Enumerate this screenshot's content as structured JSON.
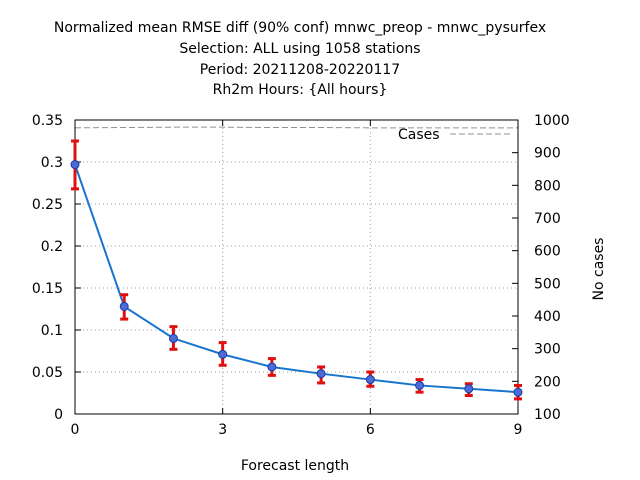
{
  "title_lines": [
    "Normalized mean RMSE diff (90% conf) mnwc_preop - mnwc_pysurfex",
    "Selection: ALL using  1058 stations",
    "Period: 20211208-20220117",
    "Rh2m   Hours: {All hours}"
  ],
  "chart_data": {
    "type": "line",
    "title": "Normalized mean RMSE diff (90% conf) mnwc_preop - mnwc_pysurfex",
    "xlabel": "Forecast length",
    "ylabel": "",
    "y2label": "No cases",
    "xlim": [
      0,
      9
    ],
    "ylim": [
      0,
      0.35
    ],
    "y2lim": [
      100,
      1000
    ],
    "x_ticks": [
      0,
      3,
      6,
      9
    ],
    "y_ticks": [
      0,
      0.05,
      0.1,
      0.15,
      0.2,
      0.25,
      0.3,
      0.35
    ],
    "y_tick_labels": [
      "0",
      "0.05",
      "0.1",
      "0.15",
      "0.2",
      "0.25",
      "0.3",
      "0.35"
    ],
    "y2_ticks": [
      100,
      200,
      300,
      400,
      500,
      600,
      700,
      800,
      900,
      1000
    ],
    "grid": true,
    "legend": "top-right",
    "series": [
      {
        "kind": "main",
        "color": "#1874CD",
        "marker_color": "#4a6cd4",
        "x": [
          0,
          1,
          2,
          3,
          4,
          5,
          6,
          7,
          8,
          9
        ],
        "y": [
          0.297,
          0.128,
          0.09,
          0.071,
          0.056,
          0.048,
          0.041,
          0.034,
          0.03,
          0.026
        ]
      },
      {
        "kind": "errorbar",
        "color": "#e01010",
        "x": [
          0,
          1,
          2,
          3,
          4,
          5,
          6,
          7,
          8,
          9
        ],
        "low": [
          0.268,
          0.113,
          0.077,
          0.058,
          0.046,
          0.037,
          0.033,
          0.026,
          0.022,
          0.018
        ],
        "high": [
          0.325,
          0.142,
          0.104,
          0.085,
          0.066,
          0.056,
          0.05,
          0.041,
          0.036,
          0.034
        ]
      },
      {
        "name": "Cases",
        "kind": "cases",
        "axis": "y2",
        "color": "#909090",
        "x": [
          0,
          1,
          2,
          3,
          4,
          5,
          6,
          7,
          8,
          9
        ],
        "y": [
          976,
          977,
          978,
          978,
          977,
          977,
          976,
          976,
          976,
          976
        ]
      }
    ]
  }
}
